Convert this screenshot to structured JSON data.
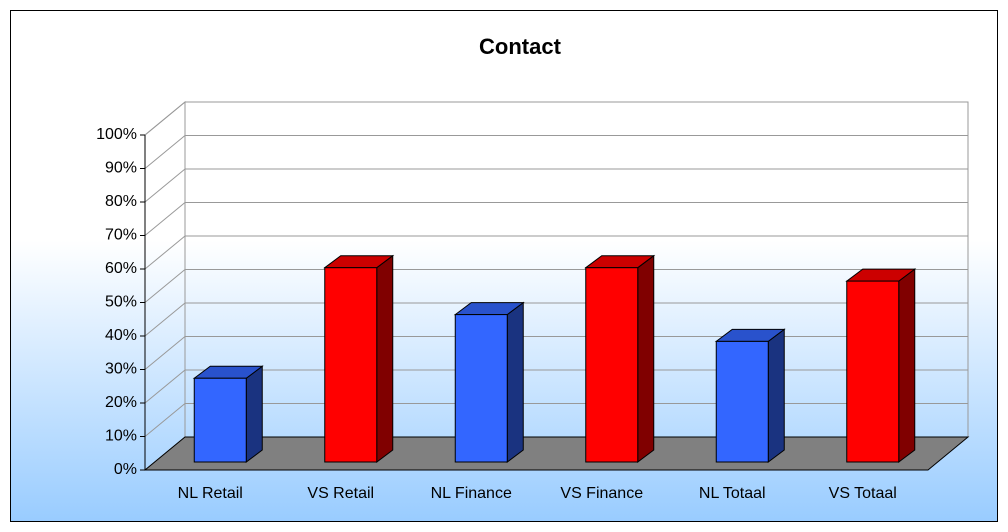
{
  "chart_data": {
    "type": "bar3d",
    "title": "Contact",
    "categories": [
      "NL Retail",
      "VS Retail",
      "NL Finance",
      "VS Finance",
      "NL Totaal",
      "VS Totaal"
    ],
    "values": [
      25,
      58,
      44,
      58,
      36,
      54
    ],
    "colors": [
      "#3366ff",
      "#ff0000",
      "#3366ff",
      "#ff0000",
      "#3366ff",
      "#ff0000"
    ],
    "ylim": [
      0,
      100
    ],
    "yticks": [
      {
        "value": 0,
        "label": "0%"
      },
      {
        "value": 10,
        "label": "10%"
      },
      {
        "value": 20,
        "label": "20%"
      },
      {
        "value": 30,
        "label": "30%"
      },
      {
        "value": 40,
        "label": "40%"
      },
      {
        "value": 50,
        "label": "50%"
      },
      {
        "value": 60,
        "label": "60%"
      },
      {
        "value": 70,
        "label": "70%"
      },
      {
        "value": 80,
        "label": "80%"
      },
      {
        "value": 90,
        "label": "90%"
      },
      {
        "value": 100,
        "label": "100%"
      }
    ],
    "grid": true
  }
}
